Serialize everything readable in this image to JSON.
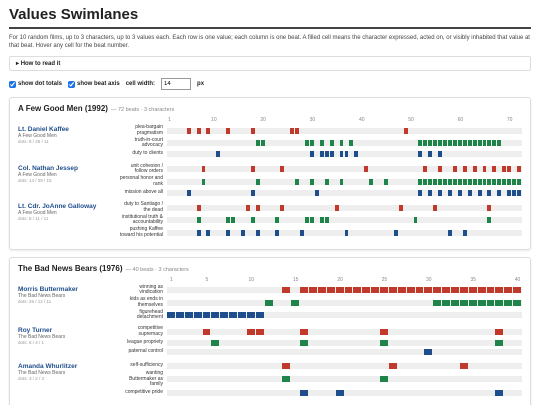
{
  "title": "Values Swimlanes",
  "intro": "For 10 random films, up to 3 characters, up to 3 values each. Each row is one value; each column is one beat. A filled cell means the character expressed, acted on, or visibly inhabited that value at that beat. Hover any cell for the beat number.",
  "how_to": "How to read it",
  "controls": {
    "show_dot_totals": {
      "label": "show dot totals",
      "checked": true
    },
    "show_beat_axis": {
      "label": "show beat axis",
      "checked": true
    },
    "cell_width_label": "cell width:",
    "cell_width": 14,
    "unit": "px"
  },
  "palette": [
    "#c0392b",
    "#1e8449",
    "#1f4e8c"
  ],
  "films": [
    {
      "title": "A Few Good Men (1992)",
      "meta": "— 72 beats · 3 characters",
      "beat_count": 72,
      "ticks": [
        1,
        10,
        20,
        30,
        40,
        50,
        60,
        70
      ],
      "characters": [
        {
          "name": "Lt. Daniel Kaffee",
          "film": "A Few Good Men",
          "dots": "dots: 8 / 25 / 11",
          "values": [
            {
              "label": "plea-bargain pragmatism",
              "beats": [
                5,
                7,
                9,
                13,
                18,
                26,
                27,
                49
              ]
            },
            {
              "label": "truth-in-court advocacy",
              "beats": [
                19,
                20,
                29,
                30,
                32,
                34,
                36,
                38,
                52,
                53,
                54,
                55,
                56,
                57,
                58,
                59,
                60,
                61,
                62,
                63,
                64,
                65,
                66,
                67,
                68
              ]
            },
            {
              "label": "duty to clients",
              "beats": [
                11,
                30,
                32,
                33,
                34,
                36,
                37,
                39,
                52,
                54,
                56
              ]
            }
          ]
        },
        {
          "name": "Col. Nathan Jessep",
          "film": "A Few Good Men",
          "dots": "dots: 14 / 29 / 15",
          "values": [
            {
              "label": "unit cohesion / follow orders",
              "beats": [
                8,
                18,
                24,
                41,
                53,
                56,
                59,
                61,
                63,
                65,
                67,
                69,
                70,
                72
              ]
            },
            {
              "label": "personal honor and rank",
              "beats": [
                8,
                19,
                27,
                30,
                33,
                36,
                42,
                45,
                52,
                53,
                54,
                55,
                56,
                57,
                58,
                59,
                60,
                61,
                62,
                63,
                64,
                65,
                66,
                67,
                68,
                69,
                70,
                71,
                72
              ]
            },
            {
              "label": "mission above all",
              "beats": [
                5,
                18,
                31,
                52,
                54,
                56,
                58,
                60,
                62,
                64,
                66,
                68,
                70,
                71,
                72
              ]
            }
          ]
        },
        {
          "name": "Lt. Cdr. JoAnne Galloway",
          "film": "A Few Good Men",
          "dots": "dots: 8 / 11 / 11",
          "values": [
            {
              "label": "duty to Santiago / the dead",
              "beats": [
                7,
                17,
                19,
                24,
                35,
                48,
                55,
                66
              ]
            },
            {
              "label": "institutional truth & accountability",
              "beats": [
                7,
                13,
                14,
                18,
                23,
                29,
                30,
                32,
                33,
                51,
                66
              ]
            },
            {
              "label": "pushing Kaffee toward his potential",
              "beats": [
                7,
                9,
                13,
                16,
                19,
                23,
                28,
                37,
                47,
                58,
                61
              ]
            }
          ]
        }
      ]
    },
    {
      "title": "The Bad News Bears (1976)",
      "meta": "— 40 beats · 3 characters",
      "beat_count": 40,
      "ticks": [
        1,
        5,
        10,
        15,
        20,
        25,
        30,
        35,
        40
      ],
      "characters": [
        {
          "name": "Morris Buttermaker",
          "film": "The Bad News Bears",
          "dots": "dots: 26 / 12 / 11",
          "values": [
            {
              "label": "winning as vindication",
              "beats": [
                14,
                16,
                17,
                18,
                19,
                20,
                21,
                22,
                23,
                24,
                25,
                26,
                27,
                28,
                29,
                30,
                31,
                32,
                33,
                34,
                35,
                36,
                37,
                38,
                39,
                40
              ]
            },
            {
              "label": "kids as ends in themselves",
              "beats": [
                12,
                15,
                31,
                32,
                33,
                34,
                35,
                36,
                37,
                38,
                39,
                40
              ]
            },
            {
              "label": "figurehead detachment",
              "beats": [
                1,
                2,
                3,
                4,
                5,
                6,
                7,
                8,
                9,
                10,
                11
              ]
            }
          ]
        },
        {
          "name": "Roy Turner",
          "film": "The Bad News Bears",
          "dots": "dots: 6 / 4 / 1",
          "values": [
            {
              "label": "competitive supremacy",
              "beats": [
                5,
                10,
                11,
                16,
                25,
                38
              ]
            },
            {
              "label": "league propriety",
              "beats": [
                6,
                16,
                25,
                38
              ]
            },
            {
              "label": "paternal control",
              "beats": [
                30
              ]
            }
          ]
        },
        {
          "name": "Amanda Whurlitzer",
          "film": "The Bad News Bears",
          "dots": "dots: 3 / 2 / 3",
          "values": [
            {
              "label": "self-sufficiency",
              "beats": [
                14,
                26,
                34
              ]
            },
            {
              "label": "wanting Buttermaker as family",
              "beats": [
                14,
                25
              ]
            },
            {
              "label": "competitive pride",
              "beats": [
                16,
                20,
                38
              ]
            }
          ]
        }
      ]
    }
  ]
}
